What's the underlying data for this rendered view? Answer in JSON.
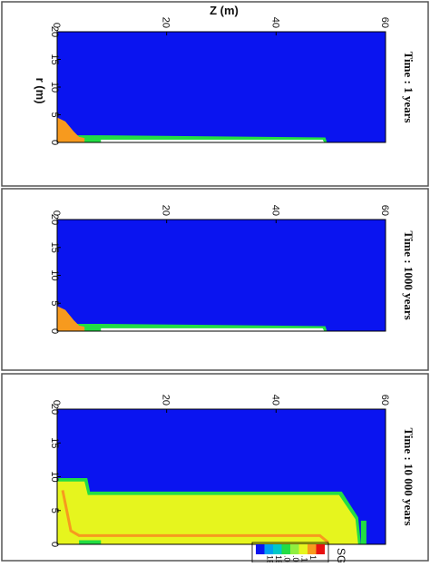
{
  "header": {
    "x_label": "Z (m)",
    "y_label": "r (m)"
  },
  "panels": [
    {
      "title": "Time : 1 years",
      "x_ticks": [
        0,
        20,
        40,
        60
      ],
      "y_ticks": [
        0,
        5,
        10,
        15,
        20
      ]
    },
    {
      "title": "Time : 1000 years",
      "x_ticks": [
        0,
        20,
        40,
        60
      ],
      "y_ticks": [
        0,
        5,
        10,
        15,
        20
      ]
    },
    {
      "title": "Time : 10 000 years",
      "x_ticks": [
        0,
        20,
        40,
        60
      ],
      "y_ticks": [
        0,
        5,
        10,
        15,
        20
      ]
    }
  ],
  "colorbar": {
    "title": "SG",
    "labels": [
      "1E-06",
      "1E-05",
      ".001",
      ".01",
      ".1",
      "1"
    ]
  }
}
